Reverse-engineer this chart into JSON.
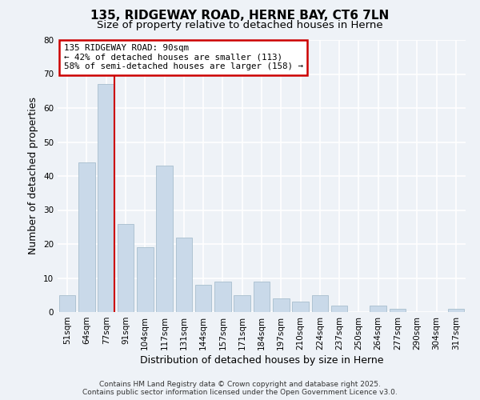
{
  "title": "135, RIDGEWAY ROAD, HERNE BAY, CT6 7LN",
  "subtitle": "Size of property relative to detached houses in Herne",
  "xlabel": "Distribution of detached houses by size in Herne",
  "ylabel": "Number of detached properties",
  "bar_labels": [
    "51sqm",
    "64sqm",
    "77sqm",
    "91sqm",
    "104sqm",
    "117sqm",
    "131sqm",
    "144sqm",
    "157sqm",
    "171sqm",
    "184sqm",
    "197sqm",
    "210sqm",
    "224sqm",
    "237sqm",
    "250sqm",
    "264sqm",
    "277sqm",
    "290sqm",
    "304sqm",
    "317sqm"
  ],
  "bar_values": [
    5,
    44,
    67,
    26,
    19,
    43,
    22,
    8,
    9,
    5,
    9,
    4,
    3,
    5,
    2,
    0,
    2,
    1,
    0,
    0,
    1
  ],
  "bar_color": "#c9d9e9",
  "bar_edge_color": "#a8bece",
  "vline_index": 2,
  "vline_color": "#cc0000",
  "ylim": [
    0,
    80
  ],
  "yticks": [
    0,
    10,
    20,
    30,
    40,
    50,
    60,
    70,
    80
  ],
  "annotation_title": "135 RIDGEWAY ROAD: 90sqm",
  "annotation_line1": "← 42% of detached houses are smaller (113)",
  "annotation_line2": "58% of semi-detached houses are larger (158) →",
  "annotation_box_facecolor": "#ffffff",
  "annotation_box_edgecolor": "#cc0000",
  "footer_line1": "Contains HM Land Registry data © Crown copyright and database right 2025.",
  "footer_line2": "Contains public sector information licensed under the Open Government Licence v3.0.",
  "background_color": "#eef2f7",
  "grid_color": "#ffffff",
  "title_fontsize": 11,
  "subtitle_fontsize": 9.5,
  "axis_label_fontsize": 9,
  "tick_fontsize": 7.5,
  "annotation_fontsize": 7.8,
  "footer_fontsize": 6.5
}
